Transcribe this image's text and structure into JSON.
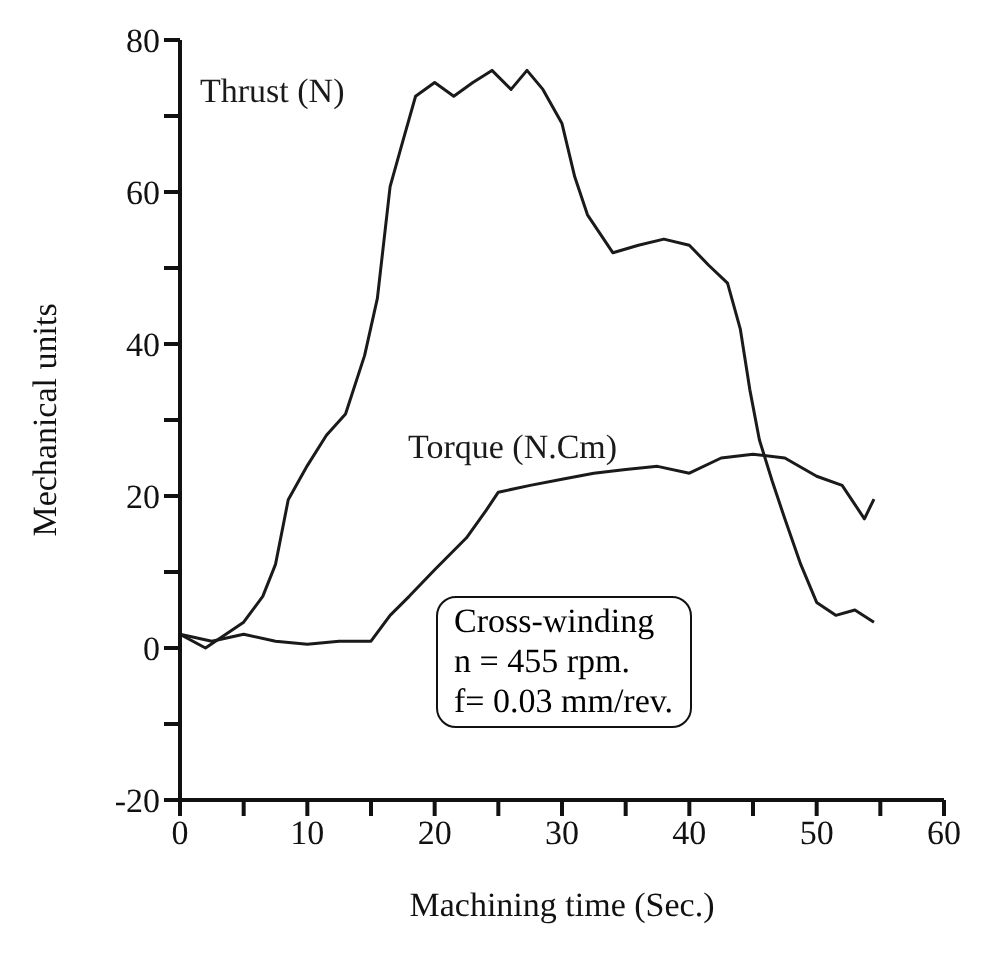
{
  "chart_data": {
    "type": "line",
    "xlabel": "Machining time (Sec.)",
    "ylabel": "Mechanical units",
    "xlim": [
      0,
      60
    ],
    "xticks": [
      0,
      {
        "value": 5,
        "label": null
      },
      10,
      {
        "value": 15,
        "label": null
      },
      20,
      {
        "value": 25,
        "label": null
      },
      30,
      {
        "value": 35,
        "label": null
      },
      40,
      {
        "value": 45,
        "label": null
      },
      50,
      {
        "value": 55,
        "label": null
      },
      60
    ],
    "ylim": [
      -20,
      80
    ],
    "yticks": [
      -20,
      {
        "value": -10,
        "label": null
      },
      0,
      {
        "value": 10,
        "label": null
      },
      20,
      {
        "value": 30,
        "label": null
      },
      40,
      {
        "value": 50,
        "label": null
      },
      60,
      {
        "value": 70,
        "label": null
      },
      80
    ],
    "grid": false,
    "legend": false,
    "marker": "none",
    "line_style": "solid",
    "series": [
      {
        "name": "Thrust (N)",
        "color": "#1a1a1a",
        "x": [
          0,
          2,
          5,
          6.5,
          7.5,
          8.5,
          10,
          11.5,
          13,
          14.5,
          15.5,
          16.5,
          17.5,
          18.5,
          20,
          21.5,
          23,
          24.5,
          26,
          27.25,
          28.5,
          30,
          31,
          32,
          34,
          36,
          38,
          40,
          41.5,
          43,
          44,
          44.75,
          45.5,
          46.5,
          47.5,
          48.75,
          50,
          51.5,
          53,
          54.5
        ],
        "values": [
          1.8,
          0,
          3.4,
          6.8,
          11,
          19.5,
          24,
          28,
          30.8,
          38.5,
          46,
          60.7,
          66.7,
          72.6,
          74.4,
          72.6,
          74.4,
          76,
          73.5,
          76,
          73.5,
          69,
          62,
          57,
          52,
          53,
          53.8,
          53,
          50.4,
          48,
          42,
          34,
          27.4,
          22,
          17,
          11,
          6,
          4.3,
          5,
          3.4
        ]
      },
      {
        "name": "Torque (N.Cm)",
        "color": "#1a1a1a",
        "x": [
          0,
          2.5,
          5,
          7.5,
          10,
          12.5,
          15,
          16.5,
          18,
          20,
          22.5,
          24,
          25,
          27.5,
          30,
          32.5,
          35,
          37.5,
          40,
          42.5,
          45,
          47.5,
          50,
          52,
          53.75,
          54.5
        ],
        "values": [
          1.8,
          0.9,
          1.8,
          0.9,
          0.5,
          0.9,
          0.9,
          4.3,
          6.8,
          10.3,
          14.5,
          18,
          20.5,
          21.4,
          22.2,
          23,
          23.5,
          23.9,
          23,
          25,
          25.5,
          25,
          22.6,
          21.4,
          17,
          19.6
        ]
      }
    ],
    "annotations": [
      "Cross-winding\nn = 455 rpm.\nf= 0.03 mm/rev."
    ]
  }
}
